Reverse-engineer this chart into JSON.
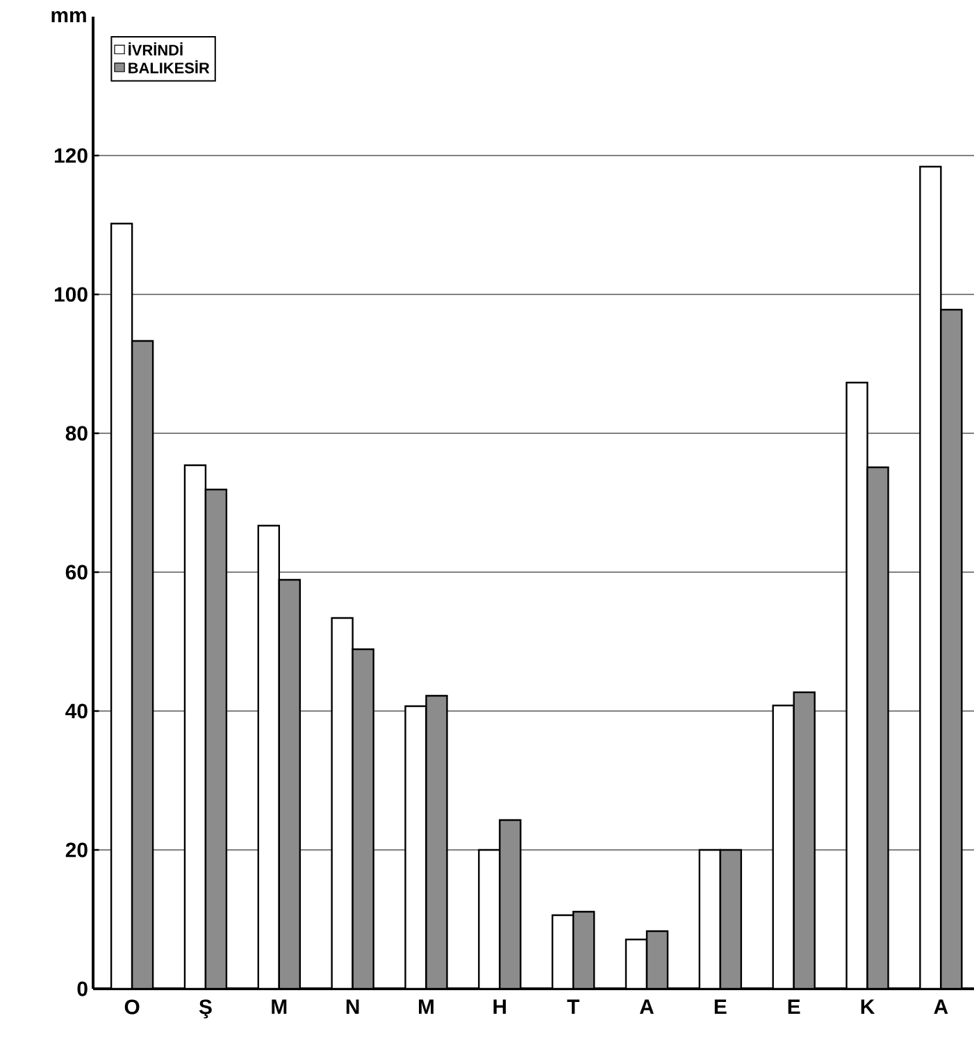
{
  "chart_data": {
    "type": "bar",
    "ylabel": "mm",
    "categories": [
      "O",
      "Ş",
      "M",
      "N",
      "M",
      "H",
      "T",
      "A",
      "E",
      "E",
      "K",
      "A"
    ],
    "series": [
      {
        "name": "İVRİNDİ",
        "color": "#ffffff",
        "values": [
          110.2,
          75.4,
          66.7,
          53.4,
          40.7,
          20.0,
          10.6,
          7.1,
          20.0,
          40.8,
          87.3,
          118.4
        ]
      },
      {
        "name": "BALIKESİR",
        "color": "#8c8c8c",
        "values": [
          93.3,
          71.9,
          58.9,
          48.9,
          42.2,
          24.3,
          11.1,
          8.3,
          20.0,
          42.7,
          75.1,
          97.8
        ]
      }
    ],
    "ylim": [
      0,
      140
    ],
    "yticks": [
      0,
      20,
      40,
      60,
      80,
      100,
      120
    ],
    "grid": "y",
    "legend": "top left"
  }
}
